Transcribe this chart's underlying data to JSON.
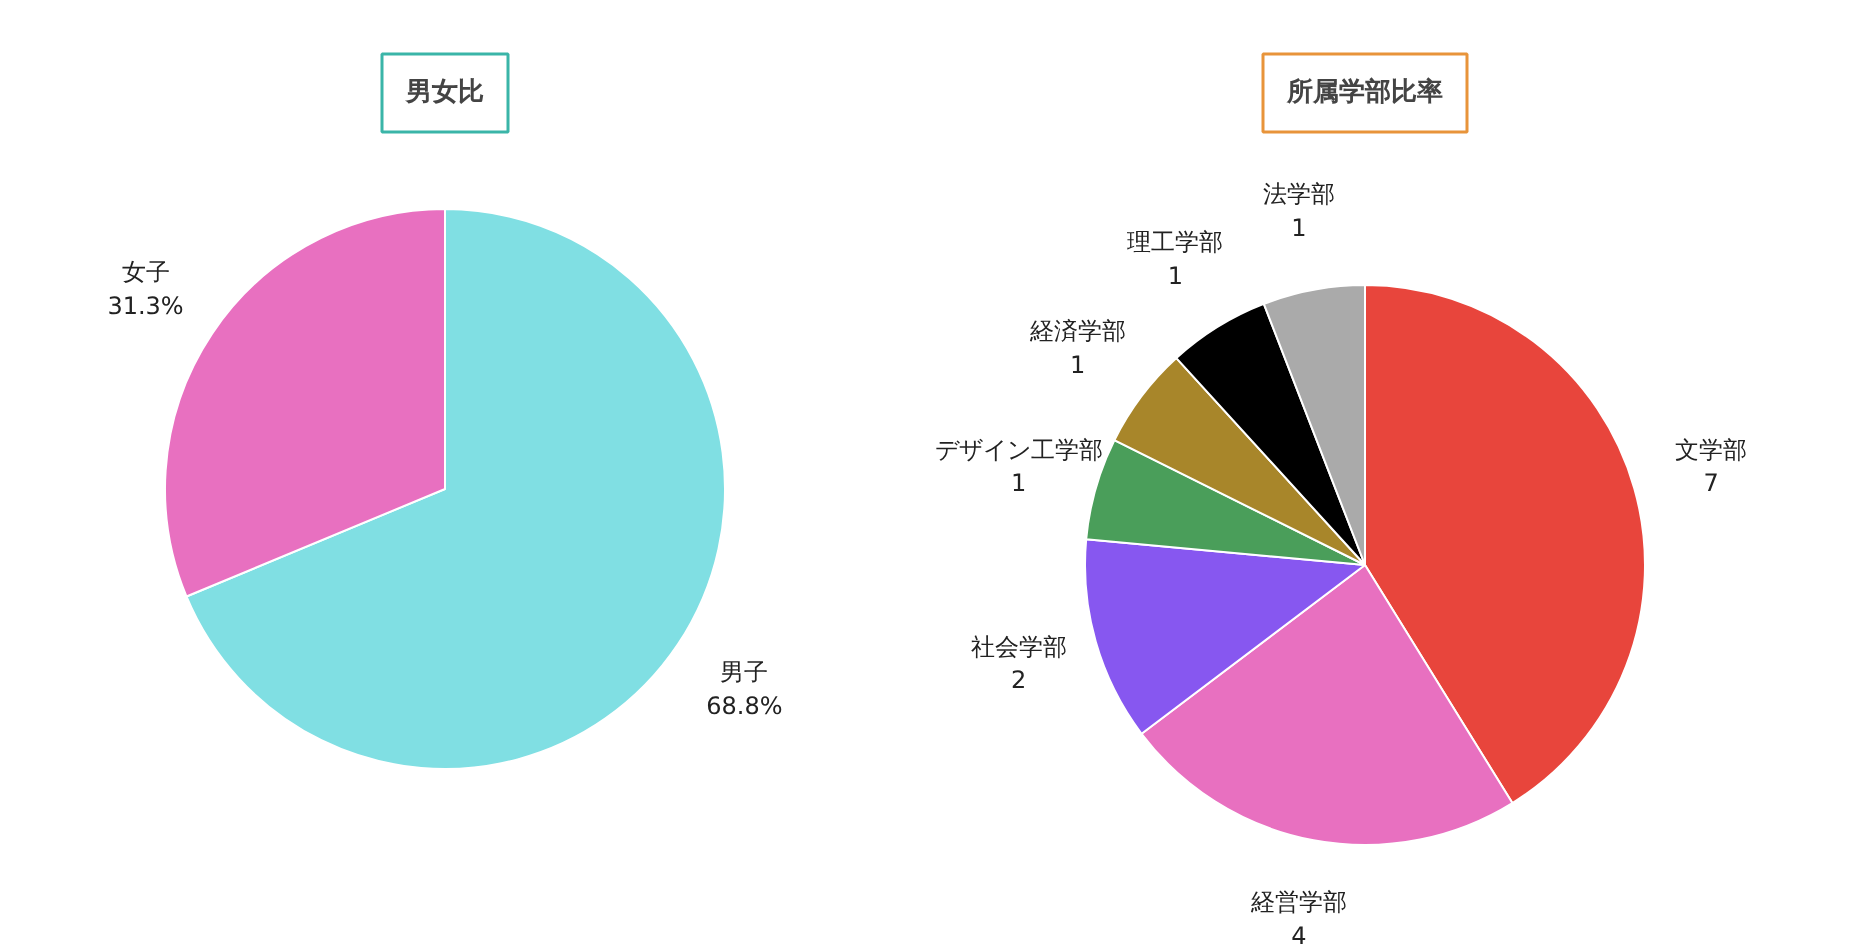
{
  "chart_data": [
    {
      "type": "pie",
      "title": "男女比",
      "categories": [
        "男子",
        "女子"
      ],
      "values": [
        68.8,
        31.3
      ],
      "colors": [
        "#80dfe3",
        "#e870c0"
      ],
      "value_labels": [
        "68.8%",
        "31.3%"
      ],
      "legend": false
    },
    {
      "type": "pie",
      "title": "所属学部比率",
      "categories": [
        "文学部",
        "経営学部",
        "社会学部",
        "デザイン工学部",
        "経済学部",
        "理工学部",
        "法学部"
      ],
      "values": [
        7,
        4,
        2,
        1,
        1,
        1,
        1
      ],
      "colors": [
        "#e8453c",
        "#e870c0",
        "#8757f0",
        "#4a9e5a",
        "#a8862a",
        "#000000",
        "#aaaaaa"
      ],
      "data_labels": true,
      "legend": false
    }
  ]
}
